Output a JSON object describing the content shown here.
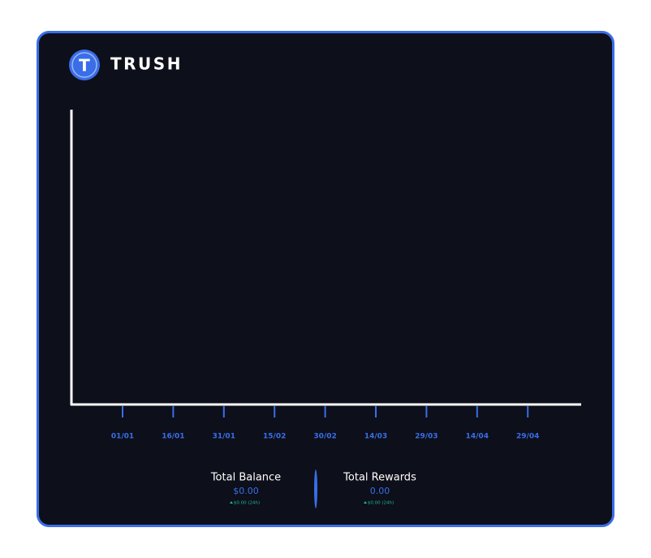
{
  "brand": {
    "name": "TRUSH",
    "logo_letter": "T"
  },
  "chart": {
    "x_labels": [
      "01/01",
      "16/01",
      "31/01",
      "15/02",
      "30/02",
      "14/03",
      "29/03",
      "14/04",
      "29/04"
    ]
  },
  "stats": [
    {
      "label": "Total Balance",
      "value": "$0.00",
      "change": "$0.00 (24h)"
    },
    {
      "label": "Total Rewards",
      "value": "0.00",
      "change": "$0.00 (24h)"
    }
  ]
}
